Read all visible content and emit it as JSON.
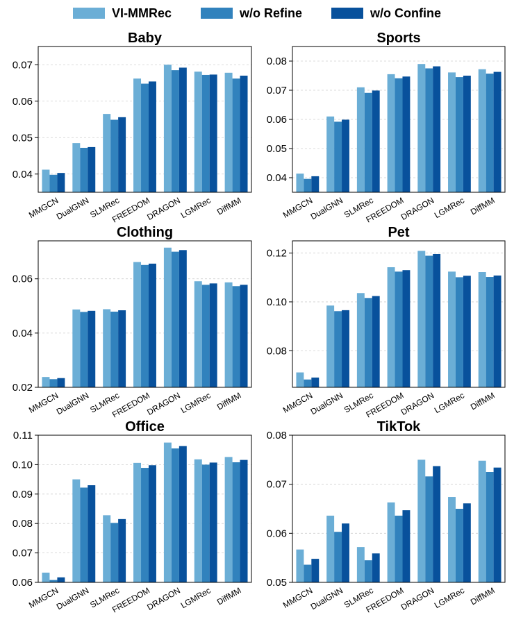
{
  "legend": {
    "items": [
      {
        "label": "VI-MMRec",
        "color": "#6baed6"
      },
      {
        "label": "w/o Refine",
        "color": "#3182bd"
      },
      {
        "label": "w/o Confine",
        "color": "#08519c"
      }
    ]
  },
  "chart_data": [
    {
      "type": "bar",
      "title": "Baby",
      "categories": [
        "MMGCN",
        "DualGNN",
        "SLMRec",
        "FREEDOM",
        "DRAGON",
        "LGMRec",
        "DiffMM"
      ],
      "ylim": [
        0.035,
        0.075
      ],
      "yticks": [
        0.04,
        0.05,
        0.06,
        0.07
      ],
      "ytick_labels": [
        "0.04",
        "0.05",
        "0.06",
        "0.07"
      ],
      "grid": true,
      "series": [
        {
          "name": "VI-MMRec",
          "values": [
            0.0412,
            0.0485,
            0.0565,
            0.0662,
            0.07,
            0.0681,
            0.0678
          ]
        },
        {
          "name": "w/o Refine",
          "values": [
            0.0398,
            0.0472,
            0.0549,
            0.0648,
            0.0685,
            0.0672,
            0.0662
          ]
        },
        {
          "name": "w/o Confine",
          "values": [
            0.0403,
            0.0474,
            0.0556,
            0.0654,
            0.0692,
            0.0673,
            0.067
          ]
        }
      ]
    },
    {
      "type": "bar",
      "title": "Sports",
      "categories": [
        "MMGCN",
        "DualGNN",
        "SLMRec",
        "FREEDOM",
        "DRAGON",
        "LGMRec",
        "DiffMM"
      ],
      "ylim": [
        0.035,
        0.085
      ],
      "yticks": [
        0.04,
        0.05,
        0.06,
        0.07,
        0.08
      ],
      "ytick_labels": [
        "0.04",
        "0.05",
        "0.06",
        "0.07",
        "0.08"
      ],
      "grid": true,
      "series": [
        {
          "name": "VI-MMRec",
          "values": [
            0.0414,
            0.061,
            0.071,
            0.0755,
            0.079,
            0.0761,
            0.0772
          ]
        },
        {
          "name": "w/o Refine",
          "values": [
            0.0396,
            0.0592,
            0.0691,
            0.0741,
            0.0775,
            0.0745,
            0.0757
          ]
        },
        {
          "name": "w/o Confine",
          "values": [
            0.0405,
            0.0599,
            0.0699,
            0.0747,
            0.0782,
            0.075,
            0.0763
          ]
        }
      ]
    },
    {
      "type": "bar",
      "title": "Clothing",
      "categories": [
        "MMGCN",
        "DualGNN",
        "SLMRec",
        "FREEDOM",
        "DRAGON",
        "LGMRec",
        "DiffMM"
      ],
      "ylim": [
        0.02,
        0.074
      ],
      "yticks": [
        0.02,
        0.04,
        0.06
      ],
      "ytick_labels": [
        "0.02",
        "0.04",
        "0.06"
      ],
      "grid": true,
      "series": [
        {
          "name": "VI-MMRec",
          "values": [
            0.0238,
            0.0487,
            0.0488,
            0.0662,
            0.0715,
            0.0591,
            0.0587
          ]
        },
        {
          "name": "w/o Refine",
          "values": [
            0.023,
            0.0478,
            0.0479,
            0.0651,
            0.07,
            0.0578,
            0.0573
          ]
        },
        {
          "name": "w/o Confine",
          "values": [
            0.0234,
            0.0482,
            0.0484,
            0.0656,
            0.0706,
            0.0583,
            0.0578
          ]
        }
      ]
    },
    {
      "type": "bar",
      "title": "Pet",
      "categories": [
        "MMGCN",
        "DualGNN",
        "SLMRec",
        "FREEDOM",
        "DRAGON",
        "LGMRec",
        "DiffMM"
      ],
      "ylim": [
        0.065,
        0.125
      ],
      "yticks": [
        0.08,
        0.1,
        0.12
      ],
      "ytick_labels": [
        "0.08",
        "0.10",
        "0.12"
      ],
      "grid": true,
      "series": [
        {
          "name": "VI-MMRec",
          "values": [
            0.0711,
            0.0985,
            0.1036,
            0.1142,
            0.1209,
            0.1124,
            0.1122
          ]
        },
        {
          "name": "w/o Refine",
          "values": [
            0.0682,
            0.0962,
            0.1016,
            0.1124,
            0.1189,
            0.1101,
            0.1102
          ]
        },
        {
          "name": "w/o Confine",
          "values": [
            0.069,
            0.0966,
            0.1024,
            0.113,
            0.1196,
            0.1107,
            0.1108
          ]
        }
      ]
    },
    {
      "type": "bar",
      "title": "Office",
      "categories": [
        "MMGCN",
        "DualGNN",
        "SLMRec",
        "FREEDOM",
        "DRAGON",
        "LGMRec",
        "DiffMM"
      ],
      "ylim": [
        0.06,
        0.11
      ],
      "yticks": [
        0.06,
        0.07,
        0.08,
        0.09,
        0.1,
        0.11
      ],
      "ytick_labels": [
        "0.06",
        "0.07",
        "0.08",
        "0.09",
        "0.10",
        "0.11"
      ],
      "grid": true,
      "series": [
        {
          "name": "VI-MMRec",
          "values": [
            0.0633,
            0.095,
            0.0828,
            0.1006,
            0.1075,
            0.1018,
            0.1026
          ]
        },
        {
          "name": "w/o Refine",
          "values": [
            0.0608,
            0.0922,
            0.0802,
            0.0989,
            0.1055,
            0.1,
            0.1008
          ]
        },
        {
          "name": "w/o Confine",
          "values": [
            0.0617,
            0.093,
            0.0815,
            0.0998,
            0.1063,
            0.1007,
            0.1016
          ]
        }
      ]
    },
    {
      "type": "bar",
      "title": "TikTok",
      "categories": [
        "MMGCN",
        "DualGNN",
        "SLMRec",
        "FREEDOM",
        "DRAGON",
        "LGMRec",
        "DiffMM"
      ],
      "ylim": [
        0.05,
        0.08
      ],
      "yticks": [
        0.05,
        0.06,
        0.07,
        0.08
      ],
      "ytick_labels": [
        "0.05",
        "0.06",
        "0.07",
        "0.08"
      ],
      "grid": true,
      "series": [
        {
          "name": "VI-MMRec",
          "values": [
            0.0567,
            0.0636,
            0.0572,
            0.0663,
            0.075,
            0.0674,
            0.0748
          ]
        },
        {
          "name": "w/o Refine",
          "values": [
            0.0536,
            0.0603,
            0.0545,
            0.0636,
            0.0716,
            0.065,
            0.0725
          ]
        },
        {
          "name": "w/o Confine",
          "values": [
            0.0548,
            0.062,
            0.0559,
            0.0647,
            0.0737,
            0.0661,
            0.0734
          ]
        }
      ]
    }
  ]
}
